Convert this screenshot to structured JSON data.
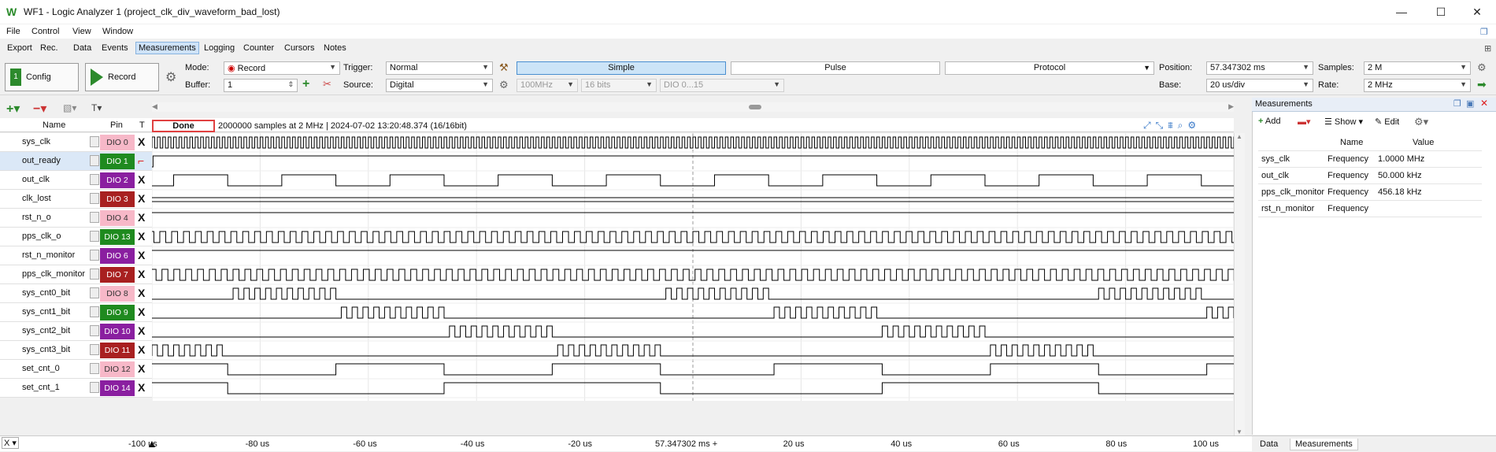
{
  "window": {
    "logo": "W",
    "title": "WF1 - Logic Analyzer 1 (project_clk_div_waveform_bad_lost)",
    "min": "—",
    "max": "☐",
    "close": "✕"
  },
  "menu": [
    "File",
    "Control",
    "View",
    "Window"
  ],
  "tabs": [
    "Export",
    "Rec.",
    "Data",
    "Events",
    "Measurements",
    "Logging",
    "Counter",
    "Cursors",
    "Notes"
  ],
  "selected_tab": "Measurements",
  "toolbar": {
    "config_label": "Config",
    "record_label": "Record",
    "mode_label": "Mode:",
    "mode_value": "Record",
    "buffer_label": "Buffer:",
    "buffer_value": "1",
    "trigger_label": "Trigger:",
    "trigger_value": "Normal",
    "source_label": "Source:",
    "source_value": "Digital",
    "rate_opt": "100MHz",
    "bits_opt": "16 bits",
    "dio_opt": "DIO 0...15",
    "mode_buttons": [
      "Simple",
      "Pulse",
      "Protocol"
    ],
    "position_label": "Position:",
    "position_value": "57.347302 ms",
    "base_label": "Base:",
    "base_value": "20 us/div",
    "samples_label": "Samples:",
    "samples_value": "2 M",
    "rate_label": "Rate:",
    "rate_value": "2 MHz"
  },
  "header": {
    "name": "Name",
    "pin": "Pin",
    "t": "T",
    "status": "Done",
    "info": "2000000 samples at 2 MHz | 2024-07-02 13:20:48.374 (16/16bit)"
  },
  "signals": [
    {
      "name": "sys_clk",
      "pin": "DIO 0",
      "color": "#f7b8c8",
      "text": "#333",
      "trig": "X"
    },
    {
      "name": "out_ready",
      "pin": "DIO 1",
      "color": "#1f8a1f",
      "text": "#fff",
      "trig": "rise"
    },
    {
      "name": "out_clk",
      "pin": "DIO 2",
      "color": "#8a1fa0",
      "text": "#fff",
      "trig": "X"
    },
    {
      "name": "clk_lost",
      "pin": "DIO 3",
      "color": "#a82020",
      "text": "#fff",
      "trig": "X"
    },
    {
      "name": "rst_n_o",
      "pin": "DIO 4",
      "color": "#f7b8c8",
      "text": "#333",
      "trig": "X"
    },
    {
      "name": "pps_clk_o",
      "pin": "DIO 13",
      "color": "#1f8a1f",
      "text": "#fff",
      "trig": "X"
    },
    {
      "name": "rst_n_monitor",
      "pin": "DIO 6",
      "color": "#8a1fa0",
      "text": "#fff",
      "trig": "X"
    },
    {
      "name": "pps_clk_monitor",
      "pin": "DIO 7",
      "color": "#a82020",
      "text": "#fff",
      "trig": "X"
    },
    {
      "name": "sys_cnt0_bit",
      "pin": "DIO 8",
      "color": "#f7b8c8",
      "text": "#333",
      "trig": "X"
    },
    {
      "name": "sys_cnt1_bit",
      "pin": "DIO 9",
      "color": "#1f8a1f",
      "text": "#fff",
      "trig": "X"
    },
    {
      "name": "sys_cnt2_bit",
      "pin": "DIO 10",
      "color": "#8a1fa0",
      "text": "#fff",
      "trig": "X"
    },
    {
      "name": "sys_cnt3_bit",
      "pin": "DIO 11",
      "color": "#a82020",
      "text": "#fff",
      "trig": "X"
    },
    {
      "name": "set_cnt_0",
      "pin": "DIO 12",
      "color": "#f7b8c8",
      "text": "#333",
      "trig": "X"
    },
    {
      "name": "set_cnt_1",
      "pin": "DIO 14",
      "color": "#8a1fa0",
      "text": "#fff",
      "trig": "X"
    }
  ],
  "axis": {
    "ticks": [
      "-100 us",
      "-80 us",
      "-60 us",
      "-40 us",
      "-20 us",
      "57.347302 ms +",
      "20 us",
      "40 us",
      "60 us",
      "80 us",
      "100 us"
    ],
    "start_us": -100,
    "end_us": 100
  },
  "measurements": {
    "title": "Measurements",
    "add_label": "Add",
    "show_label": "Show",
    "edit_label": "Edit",
    "col_name": "Name",
    "col_value": "Value",
    "rows": [
      {
        "channel": "sys_clk",
        "name": "Frequency",
        "value": "1.0000 MHz"
      },
      {
        "channel": "out_clk",
        "name": "Frequency",
        "value": "50.000 kHz"
      },
      {
        "channel": "pps_clk_monitor",
        "name": "Frequency",
        "value": "456.18 kHz"
      },
      {
        "channel": "rst_n_monitor",
        "name": "Frequency",
        "value": ""
      }
    ],
    "bottom_tabs": [
      "Data",
      "Measurements"
    ]
  }
}
